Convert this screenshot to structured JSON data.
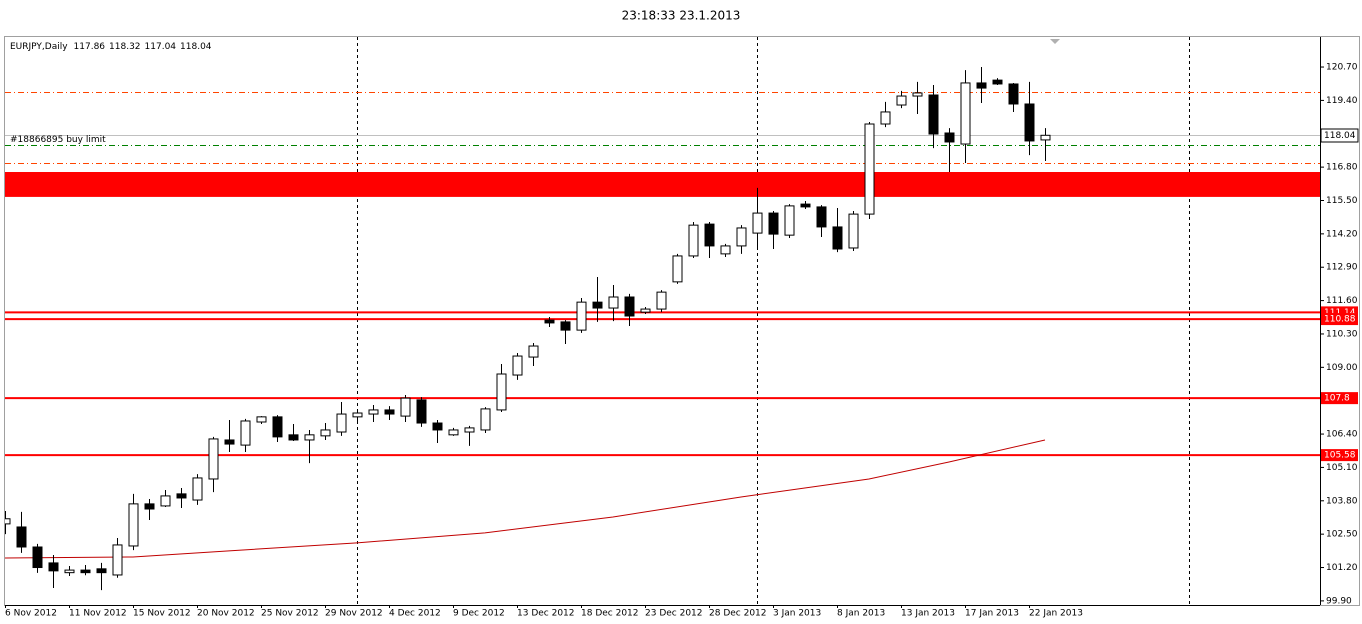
{
  "chart_data": {
    "type": "candlestick",
    "title": "23:18:33 23.1.2013",
    "symbol": "EURJPY,Daily",
    "categories": [
      "6 Nov 2012",
      null,
      null,
      null,
      "11 Nov 2012",
      null,
      null,
      null,
      "15 Nov 2012",
      null,
      null,
      null,
      "20 Nov 2012",
      null,
      null,
      null,
      "25 Nov 2012",
      null,
      null,
      null,
      "29 Nov 2012",
      null,
      null,
      null,
      "4 Dec 2012",
      null,
      null,
      null,
      "9 Dec 2012",
      null,
      null,
      null,
      "13 Dec 2012",
      null,
      null,
      null,
      "18 Dec 2012",
      null,
      null,
      null,
      "23 Dec 2012",
      null,
      null,
      null,
      "28 Dec 2012",
      null,
      null,
      null,
      "3 Jan 2013",
      null,
      null,
      null,
      "8 Jan 2013",
      null,
      null,
      null,
      "13 Jan 2013",
      null,
      null,
      null,
      "17 Jan 2013",
      null,
      null,
      null,
      "22 Jan 2013",
      null
    ],
    "open": [
      102.9,
      102.78,
      102.0,
      101.38,
      101.0,
      101.1,
      101.15,
      100.91,
      102.04,
      103.68,
      103.6,
      104.07,
      103.83,
      104.65,
      106.17,
      105.97,
      106.87,
      107.07,
      106.37,
      106.17,
      106.33,
      106.48,
      107.07,
      107.18,
      107.34,
      107.1,
      107.73,
      106.83,
      106.37,
      106.48,
      106.56,
      107.34,
      108.7,
      109.4,
      110.84,
      110.77,
      110.45,
      111.54,
      111.31,
      111.74,
      111.15,
      111.27,
      112.33,
      113.34,
      114.58,
      113.42,
      113.73,
      114.23,
      115.01,
      114.15,
      115.36,
      115.25,
      114.47,
      113.65,
      114.97,
      118.48,
      119.22,
      119.57,
      119.61,
      118.13,
      117.7,
      120.08,
      120.19,
      120.04,
      119.26,
      117.86
    ],
    "high": [
      103.4,
      103.37,
      102.12,
      101.69,
      101.26,
      101.3,
      101.38,
      102.35,
      104.07,
      103.87,
      104.22,
      104.3,
      104.84,
      106.29,
      106.95,
      106.99,
      107.1,
      107.14,
      106.79,
      106.56,
      106.83,
      107.65,
      107.34,
      107.53,
      107.49,
      107.92,
      107.84,
      106.95,
      106.64,
      106.72,
      107.45,
      109.13,
      109.56,
      109.95,
      110.96,
      110.84,
      111.7,
      112.52,
      112.21,
      111.86,
      111.35,
      112.01,
      113.42,
      114.66,
      114.66,
      113.81,
      114.54,
      115.99,
      115.09,
      115.36,
      115.48,
      115.32,
      115.21,
      115.09,
      118.56,
      119.34,
      119.77,
      120.12,
      120.0,
      118.32,
      120.58,
      120.7,
      120.27,
      120.08,
      120.12,
      118.32
    ],
    "low": [
      102.5,
      101.77,
      100.99,
      100.4,
      100.87,
      100.9,
      100.32,
      100.8,
      101.88,
      103.05,
      103.56,
      103.52,
      103.64,
      104.14,
      105.7,
      105.7,
      106.79,
      106.09,
      106.13,
      105.27,
      106.17,
      106.33,
      106.87,
      106.87,
      106.95,
      106.87,
      106.68,
      106.05,
      106.33,
      105.94,
      106.44,
      107.26,
      108.51,
      109.05,
      110.57,
      109.91,
      110.34,
      110.77,
      110.8,
      110.61,
      111.08,
      111.15,
      112.25,
      113.26,
      113.26,
      113.3,
      113.42,
      113.65,
      113.61,
      114.04,
      115.17,
      114.08,
      113.49,
      113.53,
      114.78,
      118.36,
      119.1,
      118.87,
      117.54,
      116.61,
      116.96,
      119.3,
      120.0,
      118.95,
      117.27,
      117.04
    ],
    "close": [
      103.1,
      102.0,
      101.2,
      101.07,
      101.1,
      101.0,
      101.0,
      102.08,
      103.68,
      103.48,
      103.99,
      103.91,
      104.69,
      106.21,
      106.01,
      106.91,
      107.07,
      106.29,
      106.17,
      106.37,
      106.56,
      107.18,
      107.22,
      107.34,
      107.18,
      107.8,
      106.83,
      106.56,
      106.56,
      106.64,
      107.38,
      108.74,
      109.44,
      109.83,
      110.73,
      110.45,
      111.54,
      111.31,
      111.74,
      111.0,
      111.27,
      111.93,
      113.34,
      114.54,
      113.73,
      113.73,
      114.43,
      115.01,
      114.19,
      115.29,
      115.25,
      114.47,
      113.61,
      114.97,
      118.48,
      118.95,
      119.57,
      119.69,
      118.09,
      117.78,
      120.08,
      119.88,
      120.04,
      119.26,
      117.82,
      118.04
    ],
    "up_color": "#ffffff",
    "down_color": "#000000",
    "ma": {
      "x": [
        0,
        8,
        14,
        22,
        30,
        38,
        46,
        54,
        59,
        65
      ],
      "values": [
        101.57,
        101.61,
        101.85,
        102.16,
        102.55,
        103.17,
        103.95,
        104.65,
        105.31,
        106.17
      ],
      "color": "#c00000"
    },
    "levels": [
      {
        "value": 111.14,
        "color": "#ff0000"
      },
      {
        "value": 110.88,
        "color": "#ff0000"
      },
      {
        "value": 107.8,
        "color": "#ff0000"
      },
      {
        "value": 105.58,
        "color": "#ff0000"
      }
    ],
    "zone": {
      "range": [
        115.64,
        116.61
      ],
      "color": "#ff0000"
    },
    "lines": [
      {
        "value": 119.73,
        "color": "#ff4500"
      },
      {
        "value": 117.66,
        "color": "#008000",
        "label": "#18866895 buy limit"
      },
      {
        "value": 116.96,
        "color": "#ff4500"
      }
    ],
    "ylim": [
      99.74,
      121.87
    ],
    "yticks": [
      {
        "value": 120.7,
        "label": "120.70"
      },
      {
        "value": 119.4,
        "label": "119.40"
      },
      {
        "value": 116.8,
        "label": "116.80"
      },
      {
        "value": 115.5,
        "label": "115.50"
      },
      {
        "value": 114.2,
        "label": "114.20"
      },
      {
        "value": 112.9,
        "label": "112.90"
      },
      {
        "value": 111.6,
        "label": "111.60"
      },
      {
        "value": 110.3,
        "label": "110.30"
      },
      {
        "value": 109,
        "label": "109.00"
      },
      {
        "value": 106.4,
        "label": "106.40"
      },
      {
        "value": 105.1,
        "label": "105.10"
      },
      {
        "value": 103.8,
        "label": "103.80"
      },
      {
        "value": 102.5,
        "label": "102.50"
      },
      {
        "value": 101.2,
        "label": "101.20"
      },
      {
        "value": 99.9,
        "label": "99.90"
      }
    ]
  }
}
